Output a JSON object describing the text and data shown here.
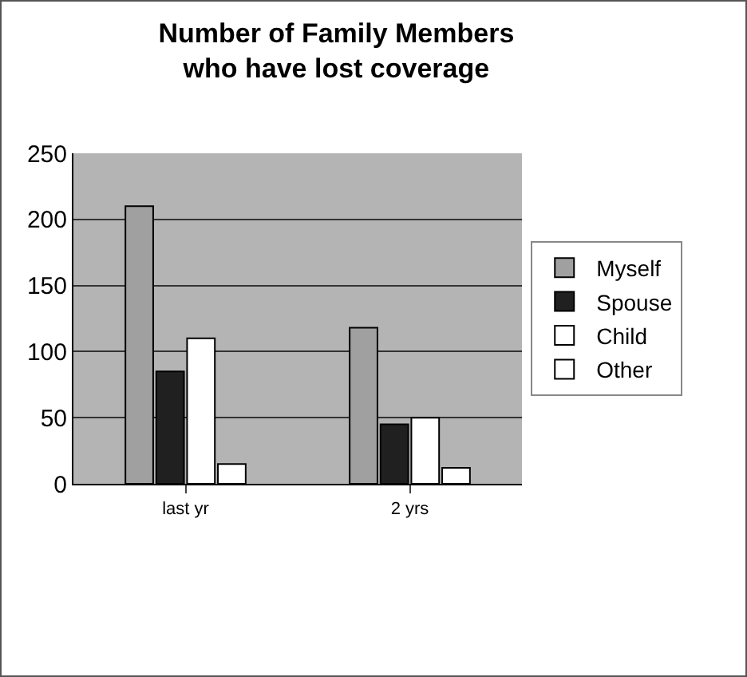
{
  "chart_data": {
    "type": "bar",
    "title": "Number of Family Members\nwho have lost coverage",
    "categories": [
      "last yr",
      "2 yrs"
    ],
    "series": [
      {
        "name": "Myself",
        "color": "#a0a0a0",
        "values": [
          210,
          118
        ]
      },
      {
        "name": "Spouse",
        "color": "#202020",
        "values": [
          85,
          45
        ]
      },
      {
        "name": "Child",
        "color": "#ffffff",
        "values": [
          110,
          50
        ]
      },
      {
        "name": "Other",
        "color": "#ffffff",
        "values": [
          15,
          12
        ]
      }
    ],
    "ylim": [
      0,
      250
    ],
    "yticks": [
      0,
      50,
      100,
      150,
      200,
      250
    ],
    "grid": "y",
    "legend": "right"
  }
}
